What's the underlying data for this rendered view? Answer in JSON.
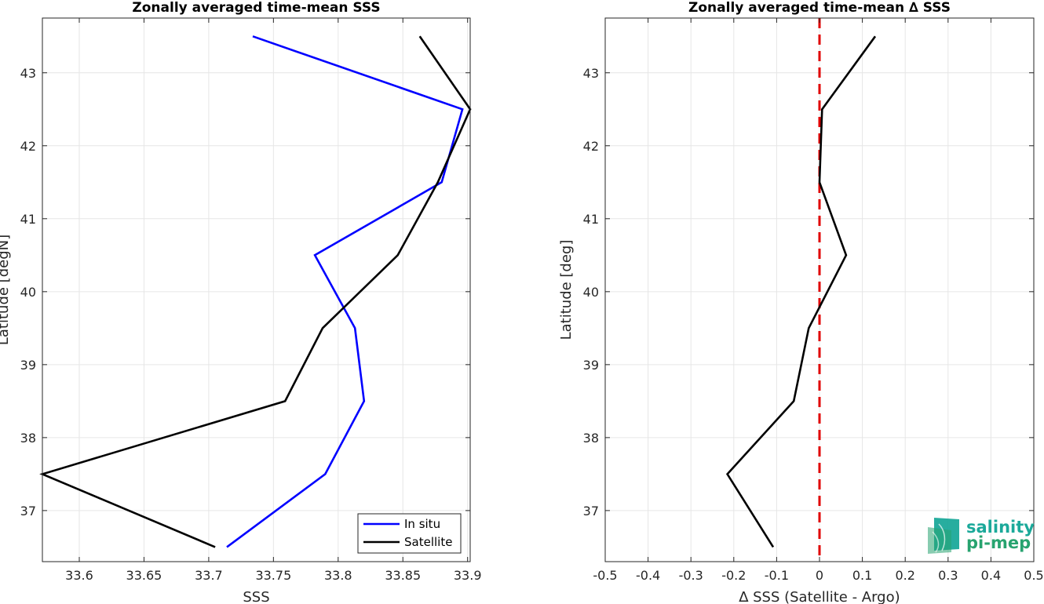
{
  "chart_data": [
    {
      "type": "line",
      "title": "Zonally averaged time-mean SSS",
      "xlabel": "SSS",
      "ylabel": "Latitude [degN]",
      "xlim": [
        33.5715,
        33.902
      ],
      "ylim": [
        36.3,
        43.75
      ],
      "xticks": [
        "33.6",
        "33.65",
        "33.7",
        "33.75",
        "33.8",
        "33.85",
        "33.9"
      ],
      "yticks": [
        "37",
        "38",
        "39",
        "40",
        "41",
        "42",
        "43"
      ],
      "grid": true,
      "legend_position": "bottom-right",
      "series": [
        {
          "name": "In situ",
          "color": "#0000ff",
          "x": [
            33.734,
            33.896,
            33.88,
            33.782,
            33.813,
            33.82,
            33.79,
            33.714
          ],
          "y": [
            43.5,
            42.5,
            41.5,
            40.5,
            39.5,
            38.5,
            37.5,
            36.5
          ]
        },
        {
          "name": "Satellite",
          "color": "#000000",
          "x": [
            33.863,
            33.902,
            33.877,
            33.846,
            33.788,
            33.759,
            33.5715,
            33.705
          ],
          "y": [
            43.5,
            42.5,
            41.5,
            40.5,
            39.5,
            38.5,
            37.5,
            36.5
          ]
        }
      ]
    },
    {
      "type": "line",
      "title": "Zonally averaged time-mean ∆ SSS",
      "xlabel": "∆ SSS (Satellite - Argo)",
      "ylabel": "Latitude [deg]",
      "xlim": [
        -0.5,
        0.5
      ],
      "ylim": [
        36.3,
        43.75
      ],
      "xticks": [
        "-0.5",
        "-0.4",
        "-0.3",
        "-0.2",
        "-0.1",
        "0",
        "0.1",
        "0.2",
        "0.3",
        "0.4",
        "0.5"
      ],
      "yticks": [
        "37",
        "38",
        "39",
        "40",
        "41",
        "42",
        "43"
      ],
      "grid": true,
      "reference_line": {
        "x": 0,
        "color": "#e00000",
        "style": "dashed"
      },
      "series": [
        {
          "color": "#000000",
          "x": [
            0.13,
            0.006,
            0.0,
            0.062,
            -0.025,
            -0.06,
            -0.215,
            -0.108
          ],
          "y": [
            43.5,
            42.5,
            41.5,
            40.5,
            39.5,
            38.5,
            37.5,
            36.5
          ]
        }
      ]
    }
  ],
  "logo": {
    "line1": "salinity",
    "line2": "pi-mep",
    "color1": "#1ba99a",
    "color2": "#27a36f"
  }
}
